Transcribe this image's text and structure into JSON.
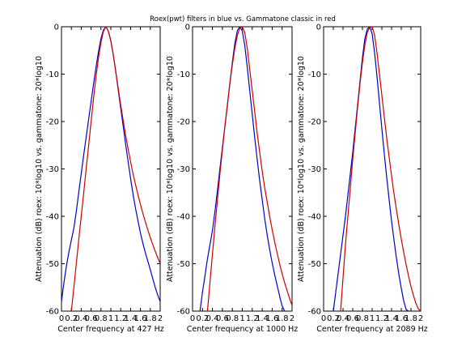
{
  "chart_data": {
    "title": "Roex(pwt) filters in blue vs. Gammatone classic in red",
    "colors": {
      "roex": "#0000cc",
      "gammatone": "#cc0000"
    },
    "panels": [
      {
        "type": "line",
        "xlabel": "Center frequency at 427 Hz",
        "ylabel": "Attenuation (dB) roex: 10*log10 vs. gammatone: 20*log10",
        "xlim": [
          0,
          2
        ],
        "ylim": [
          -60,
          0
        ],
        "xticks": [
          "0",
          "0.2",
          "0.4",
          "0.6",
          "0.8",
          "1",
          "1.2",
          "1.4",
          "1.6",
          "1.8",
          "2"
        ],
        "yticks": [
          "0",
          "-10",
          "-20",
          "-30",
          "-40",
          "-50",
          "-60"
        ],
        "series": [
          {
            "color": "roex",
            "x": [
              0,
              0.05,
              0.1,
              0.15,
              0.2,
              0.25,
              0.3,
              0.35,
              0.4,
              0.45,
              0.5,
              0.55,
              0.6,
              0.65,
              0.7,
              0.75,
              0.8,
              0.85,
              0.9,
              0.95,
              1.0,
              1.05,
              1.1,
              1.15,
              1.2,
              1.25,
              1.3,
              1.35,
              1.4,
              1.45,
              1.5,
              1.55,
              1.6,
              1.65,
              1.7,
              1.75,
              1.8,
              1.85,
              1.9,
              1.95,
              2.0
            ],
            "y": [
              -58,
              -54,
              -50.5,
              -47.5,
              -45,
              -42.5,
              -39,
              -35,
              -31,
              -27,
              -23.3,
              -19.5,
              -15.8,
              -12,
              -8.5,
              -5.2,
              -2.5,
              -0.7,
              0,
              -0.9,
              -3,
              -6,
              -9.5,
              -13.3,
              -17.2,
              -21,
              -24.8,
              -28.5,
              -32,
              -35.3,
              -38.3,
              -41,
              -43.5,
              -45.7,
              -47.7,
              -49.5,
              -51.3,
              -53.2,
              -55,
              -56.6,
              -58
            ]
          },
          {
            "color": "gammatone",
            "x": [
              0.2,
              0.25,
              0.3,
              0.35,
              0.4,
              0.45,
              0.5,
              0.55,
              0.6,
              0.65,
              0.7,
              0.75,
              0.8,
              0.85,
              0.9,
              0.95,
              1.0,
              1.05,
              1.1,
              1.15,
              1.2,
              1.25,
              1.3,
              1.35,
              1.4,
              1.45,
              1.5,
              1.55,
              1.6,
              1.65,
              1.7,
              1.75,
              1.8,
              1.85,
              1.9,
              1.95,
              2.0
            ],
            "y": [
              -60,
              -55,
              -50,
              -45,
              -40,
              -35,
              -30,
              -25,
              -20,
              -15,
              -10.5,
              -6.5,
              -3.3,
              -1,
              0,
              -0.9,
              -3,
              -6,
              -9.5,
              -13,
              -16.5,
              -19.8,
              -22.9,
              -25.8,
              -28.5,
              -31,
              -33.3,
              -35.5,
              -37.5,
              -39.4,
              -41.2,
              -42.9,
              -44.5,
              -46,
              -47.4,
              -48.7,
              -50
            ]
          }
        ]
      },
      {
        "type": "line",
        "xlabel": "Center frequency at 1000 Hz",
        "ylabel": "Attenuation (dB) roex: 10*log10 vs. gammatone: 20*log10",
        "xlim": [
          0,
          2
        ],
        "ylim": [
          -60,
          0
        ],
        "xticks": [
          "0",
          "0.2",
          "0.4",
          "0.6",
          "0.8",
          "1",
          "1.2",
          "1.4",
          "1.6",
          "1.8",
          "2"
        ],
        "yticks": [
          "0",
          "-10",
          "-20",
          "-30",
          "-40",
          "-50",
          "-60"
        ],
        "series": [
          {
            "color": "roex",
            "x": [
              0.15,
              0.2,
              0.25,
              0.3,
              0.35,
              0.4,
              0.45,
              0.5,
              0.55,
              0.6,
              0.65,
              0.7,
              0.75,
              0.8,
              0.85,
              0.9,
              0.95,
              1.0,
              1.05,
              1.1,
              1.15,
              1.2,
              1.25,
              1.3,
              1.35,
              1.4,
              1.45,
              1.5,
              1.55,
              1.6,
              1.65,
              1.7,
              1.75,
              1.8,
              1.85
            ],
            "y": [
              -60,
              -56,
              -52.5,
              -49,
              -46,
              -43,
              -39,
              -34.5,
              -30,
              -25.5,
              -21,
              -16.5,
              -12,
              -7.5,
              -3.5,
              -0.8,
              0,
              -0.9,
              -4,
              -8.5,
              -13.5,
              -18.5,
              -23.5,
              -28,
              -32.5,
              -36.5,
              -40.5,
              -44,
              -47,
              -49.8,
              -52.3,
              -54.6,
              -56.8,
              -58.9,
              -60
            ]
          },
          {
            "color": "gammatone",
            "x": [
              0.3,
              0.35,
              0.4,
              0.45,
              0.5,
              0.55,
              0.6,
              0.65,
              0.7,
              0.75,
              0.8,
              0.85,
              0.9,
              0.95,
              1.0,
              1.05,
              1.1,
              1.15,
              1.2,
              1.25,
              1.3,
              1.35,
              1.4,
              1.45,
              1.5,
              1.55,
              1.6,
              1.65,
              1.7,
              1.75,
              1.8,
              1.85,
              1.9,
              1.95,
              2.0
            ],
            "y": [
              -60,
              -54,
              -48,
              -42,
              -36.5,
              -31,
              -26,
              -21,
              -16.5,
              -12,
              -8,
              -4.5,
              -1.8,
              -0.3,
              0,
              -1.3,
              -4.5,
              -9,
              -13.5,
              -18,
              -22.5,
              -26.5,
              -30.5,
              -34,
              -37,
              -40,
              -42.8,
              -45.4,
              -47.8,
              -50,
              -52.1,
              -54,
              -55.7,
              -57.3,
              -58.8
            ]
          }
        ]
      },
      {
        "type": "line",
        "xlabel": "Center frequency at 2089 Hz",
        "ylabel": "Attenuation (dB) roex: 10*log10 vs. gammatone: 20*log10",
        "xlim": [
          0,
          2
        ],
        "ylim": [
          -60,
          0
        ],
        "xticks": [
          "0",
          "0.2",
          "0.4",
          "0.6",
          "0.8",
          "1",
          "1.2",
          "1.4",
          "1.6",
          "1.8",
          "2"
        ],
        "yticks": [
          "0",
          "-10",
          "-20",
          "-30",
          "-40",
          "-50",
          "-60"
        ],
        "series": [
          {
            "color": "roex",
            "x": [
              0.2,
              0.25,
              0.3,
              0.35,
              0.4,
              0.45,
              0.5,
              0.55,
              0.6,
              0.65,
              0.7,
              0.75,
              0.8,
              0.85,
              0.9,
              0.95,
              1.0,
              1.05,
              1.1,
              1.15,
              1.2,
              1.25,
              1.3,
              1.35,
              1.4,
              1.45,
              1.5,
              1.55,
              1.6,
              1.65,
              1.7,
              1.75
            ],
            "y": [
              -60,
              -56,
              -52,
              -48,
              -44,
              -40,
              -35.5,
              -31,
              -26.5,
              -21.5,
              -16.5,
              -11.5,
              -6.5,
              -2.5,
              -0.5,
              0,
              -1.5,
              -5.5,
              -10.5,
              -16,
              -21.5,
              -26.8,
              -31.8,
              -36.5,
              -41,
              -45,
              -48.8,
              -52.2,
              -55.2,
              -57.8,
              -59.7,
              -60
            ]
          },
          {
            "color": "gammatone",
            "x": [
              0.35,
              0.4,
              0.45,
              0.5,
              0.55,
              0.6,
              0.65,
              0.7,
              0.75,
              0.8,
              0.85,
              0.9,
              0.95,
              1.0,
              1.05,
              1.1,
              1.15,
              1.2,
              1.25,
              1.3,
              1.35,
              1.4,
              1.45,
              1.5,
              1.55,
              1.6,
              1.65,
              1.7,
              1.75,
              1.8,
              1.85,
              1.9,
              1.95,
              2.0
            ],
            "y": [
              -60,
              -53,
              -46,
              -40,
              -34,
              -28,
              -22.5,
              -17,
              -12,
              -7.5,
              -3.8,
              -1.2,
              -0.1,
              0,
              -1.8,
              -5.5,
              -10,
              -14.5,
              -19,
              -23.5,
              -27.5,
              -31.5,
              -35.2,
              -38.6,
              -41.8,
              -44.8,
              -47.6,
              -50.2,
              -52.6,
              -54.8,
              -56.7,
              -58.3,
              -59.5,
              -60
            ]
          }
        ]
      }
    ]
  }
}
